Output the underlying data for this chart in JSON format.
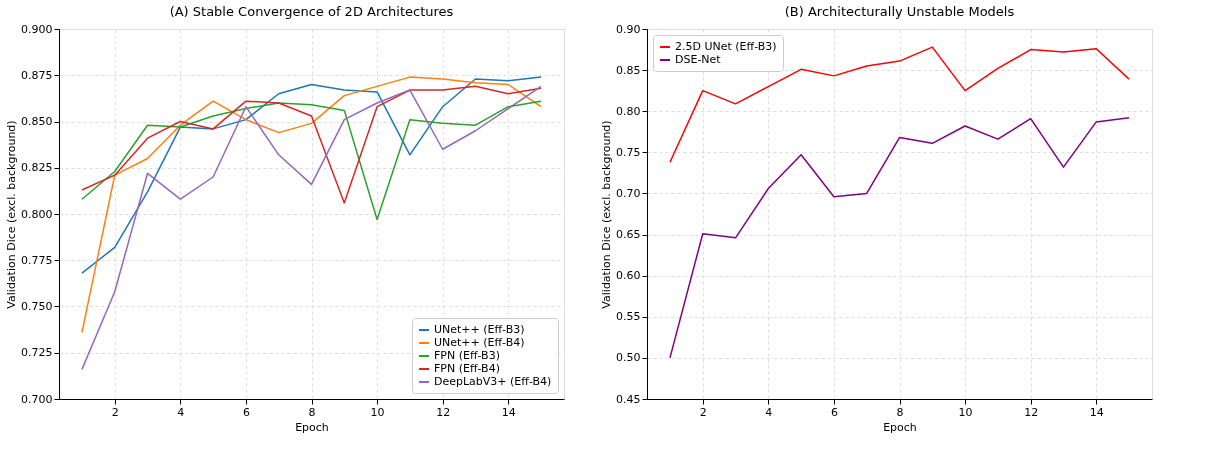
{
  "chart_data": [
    {
      "type": "line",
      "title": "(A) Stable Convergence of 2D Architectures",
      "xlabel": "Epoch",
      "ylabel": "Validation Dice (excl. background)",
      "x": [
        1,
        2,
        3,
        4,
        5,
        6,
        7,
        8,
        9,
        10,
        11,
        12,
        13,
        14,
        15
      ],
      "series": [
        {
          "name": "UNet++ (Eff-B3)",
          "color": "#1f77b4",
          "values": [
            0.768,
            0.782,
            0.812,
            0.847,
            0.846,
            0.851,
            0.865,
            0.87,
            0.867,
            0.866,
            0.832,
            0.858,
            0.873,
            0.872,
            0.874
          ]
        },
        {
          "name": "UNet++ (Eff-B4)",
          "color": "#ff7f0e",
          "values": [
            0.736,
            0.821,
            0.83,
            0.848,
            0.861,
            0.851,
            0.844,
            0.849,
            0.864,
            0.869,
            0.874,
            0.873,
            0.871,
            0.87,
            0.858
          ]
        },
        {
          "name": "FPN (Eff-B3)",
          "color": "#2ca02c",
          "values": [
            0.808,
            0.823,
            0.848,
            0.847,
            0.853,
            0.857,
            0.86,
            0.859,
            0.856,
            0.797,
            0.851,
            0.849,
            0.848,
            0.858,
            0.861
          ]
        },
        {
          "name": "FPN (Eff-B4)",
          "color": "#d62728",
          "values": [
            0.813,
            0.821,
            0.841,
            0.85,
            0.846,
            0.861,
            0.86,
            0.853,
            0.806,
            0.858,
            0.867,
            0.867,
            0.869,
            0.865,
            0.868
          ]
        },
        {
          "name": "DeepLabV3+ (Eff-B4)",
          "color": "#9467bd",
          "values": [
            0.716,
            0.758,
            0.822,
            0.808,
            0.82,
            0.858,
            0.832,
            0.816,
            0.851,
            0.86,
            0.867,
            0.835,
            0.845,
            0.857,
            0.869
          ]
        }
      ],
      "xlim": [
        0.3,
        15.7
      ],
      "xticks": [
        2,
        4,
        6,
        8,
        10,
        12,
        14
      ],
      "ylim": [
        0.7,
        0.9
      ],
      "yticks": [
        {
          "value": 0.7,
          "label": "0.700"
        },
        {
          "value": 0.725,
          "label": "0.725"
        },
        {
          "value": 0.75,
          "label": "0.750"
        },
        {
          "value": 0.775,
          "label": "0.775"
        },
        {
          "value": 0.8,
          "label": "0.800"
        },
        {
          "value": 0.825,
          "label": "0.825"
        },
        {
          "value": 0.85,
          "label": "0.850"
        },
        {
          "value": 0.875,
          "label": "0.875"
        },
        {
          "value": 0.9,
          "label": "0.900"
        }
      ],
      "grid": true,
      "legend": "bottom right",
      "line_style": "solid"
    },
    {
      "type": "line",
      "title": "(B) Architecturally Unstable Models",
      "xlabel": "Epoch",
      "ylabel": "Validation Dice (excl. background)",
      "x": [
        1,
        2,
        3,
        4,
        5,
        6,
        7,
        8,
        9,
        10,
        11,
        12,
        13,
        14,
        15
      ],
      "series": [
        {
          "name": "2.5D UNet (Eff-B3)",
          "color": "#ff0000",
          "values": [
            0.738,
            0.825,
            0.809,
            0.83,
            0.851,
            0.843,
            0.855,
            0.861,
            0.878,
            0.825,
            0.852,
            0.875,
            0.872,
            0.876,
            0.839
          ]
        },
        {
          "name": "DSE-Net",
          "color": "#800080",
          "values": [
            0.5,
            0.651,
            0.646,
            0.706,
            0.747,
            0.696,
            0.7,
            0.768,
            0.761,
            0.782,
            0.766,
            0.791,
            0.732,
            0.787,
            0.792
          ]
        }
      ],
      "xlim": [
        0.3,
        15.7
      ],
      "xticks": [
        2,
        4,
        6,
        8,
        10,
        12,
        14
      ],
      "ylim": [
        0.45,
        0.9
      ],
      "yticks": [
        {
          "value": 0.45,
          "label": "0.45"
        },
        {
          "value": 0.5,
          "label": "0.50"
        },
        {
          "value": 0.55,
          "label": "0.55"
        },
        {
          "value": 0.6,
          "label": "0.60"
        },
        {
          "value": 0.65,
          "label": "0.65"
        },
        {
          "value": 0.7,
          "label": "0.70"
        },
        {
          "value": 0.75,
          "label": "0.75"
        },
        {
          "value": 0.8,
          "label": "0.80"
        },
        {
          "value": 0.85,
          "label": "0.85"
        },
        {
          "value": 0.9,
          "label": "0.90"
        }
      ],
      "grid": true,
      "legend": "top left",
      "line_style": "solid"
    }
  ]
}
